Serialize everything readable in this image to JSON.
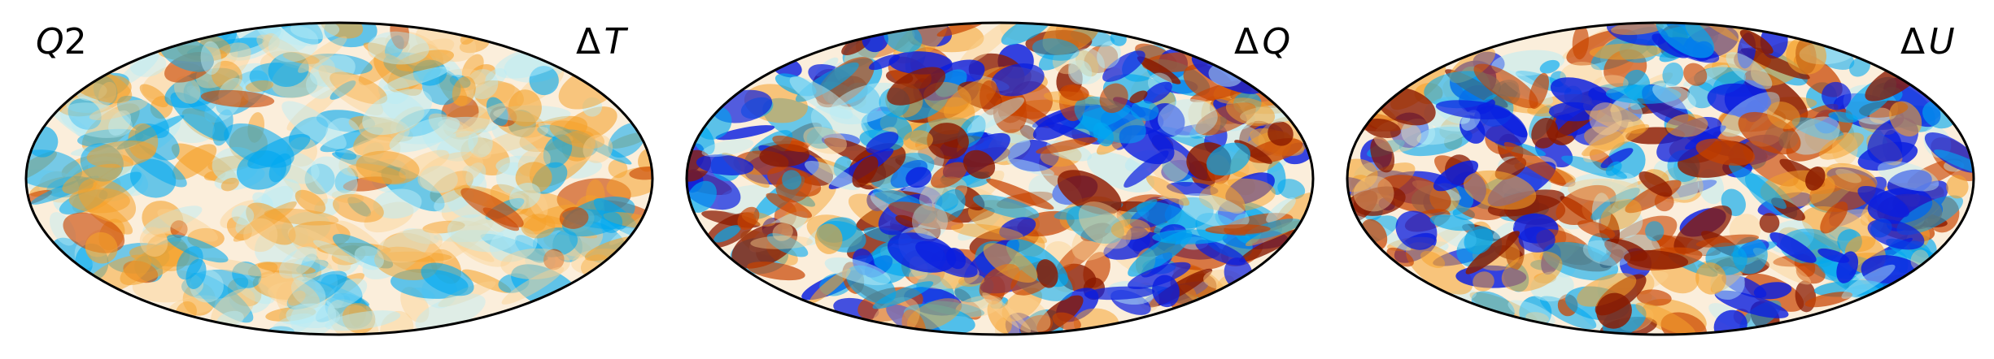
{
  "labels": {
    "panel1_prefix": "Q",
    "panel1_suffix": "2",
    "panel1_title_symbol": "Δ",
    "panel1_title_var": "T",
    "panel2_title_symbol": "Δ",
    "panel2_title_var": "Q",
    "panel3_title_symbol": "Δ",
    "panel3_title_var": "U"
  },
  "colormap": {
    "negative_deep": "#0a1ee0",
    "negative_mid": "#00a8f0",
    "negative_light": "#b8ecf6",
    "neutral": "#fbeedb",
    "positive_light": "#fbd190",
    "positive_mid": "#f5a12a",
    "positive_deep": "#c84300",
    "positive_darkest": "#8a1a00"
  },
  "panels": [
    {
      "id": "delta-t",
      "description_var": "T",
      "seed": 11,
      "contrast": 0.55
    },
    {
      "id": "delta-q",
      "description_var": "Q",
      "seed": 37,
      "contrast": 1.0
    },
    {
      "id": "delta-u",
      "description_var": "U",
      "seed": 73,
      "contrast": 1.0
    }
  ]
}
